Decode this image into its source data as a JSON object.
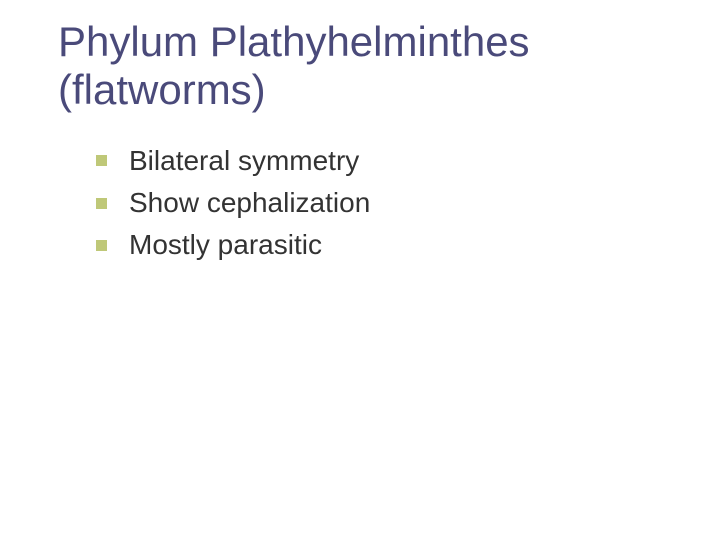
{
  "slide": {
    "title": "Phylum Plathyhelminthes (flatworms)",
    "bullets": [
      {
        "text": "Bilateral symmetry"
      },
      {
        "text": "Show cephalization"
      },
      {
        "text": "Mostly parasitic"
      }
    ]
  },
  "style": {
    "title_color": "#4a4a7a",
    "title_fontsize": 42,
    "bullet_color": "#bfc878",
    "bullet_size": 11,
    "text_color": "#333333",
    "text_fontsize": 28,
    "background_color": "#ffffff",
    "font_family": "Verdana"
  }
}
